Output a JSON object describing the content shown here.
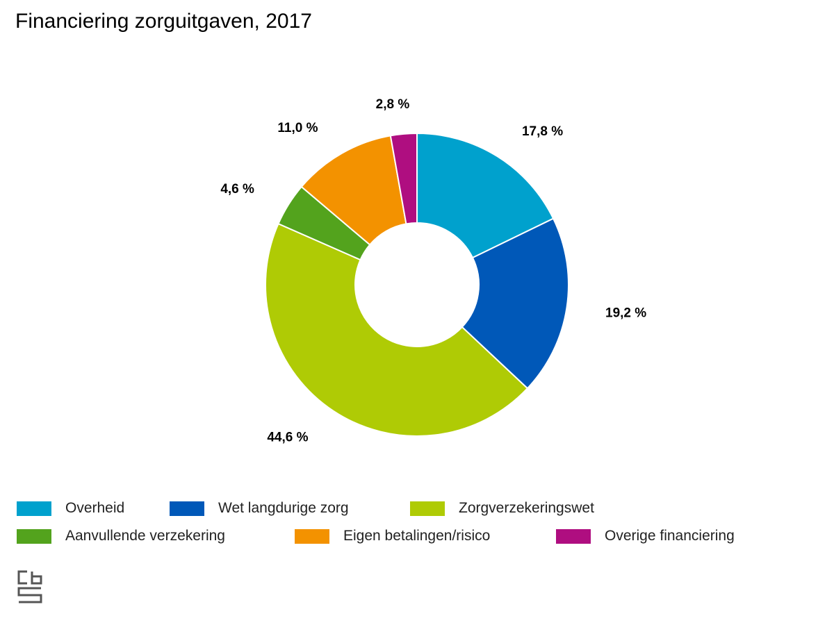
{
  "chart_data": {
    "type": "pie",
    "style": "donut",
    "title": "Financiering zorguitgaven, 2017",
    "unit": "%",
    "categories": [
      "Overheid",
      "Wet langdurige zorg",
      "Zorgverzekeringswet",
      "Aanvullende verzekering",
      "Eigen betalingen/risico",
      "Overige financiering"
    ],
    "values": [
      17.8,
      19.2,
      44.6,
      4.6,
      11.0,
      2.8
    ],
    "labels": [
      "17,8 %",
      "19,2 %",
      "44,6 %",
      "4,6 %",
      "11,0 %",
      "2,8 %"
    ],
    "colors": [
      "#00A1CD",
      "#0058B8",
      "#AFCB05",
      "#53A31D",
      "#F39200",
      "#AF0E80"
    ],
    "start": "top",
    "direction": "clockwise",
    "legend_position": "bottom"
  },
  "logo": {
    "text": "cbs",
    "icon": "cbs-logo-icon"
  }
}
